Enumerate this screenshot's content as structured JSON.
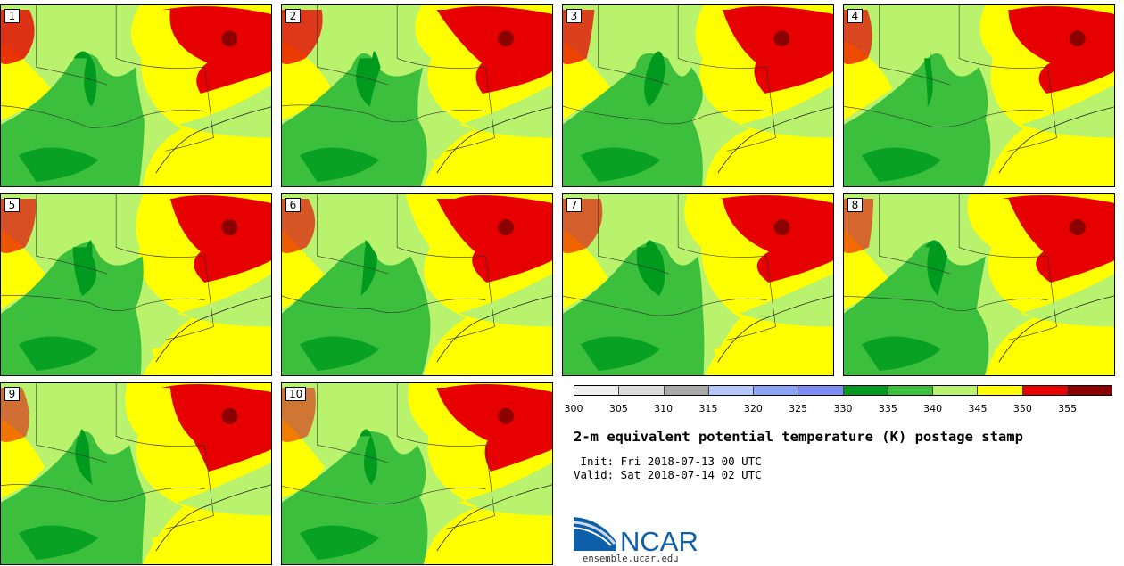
{
  "title": "2-m equivalent potential temperature (K) postage stamp",
  "init": " Init: Fri 2018-07-13 00 UTC",
  "valid": "Valid: Sat 2018-07-14 02 UTC",
  "members": [
    "1",
    "2",
    "3",
    "4",
    "5",
    "6",
    "7",
    "8",
    "9",
    "10"
  ],
  "colorbar": {
    "ticks": [
      "300",
      "305",
      "310",
      "315",
      "320",
      "325",
      "330",
      "335",
      "340",
      "345",
      "350",
      "355"
    ],
    "colors": [
      "#f0f0f0",
      "#dcdcdc",
      "#aaaaaa",
      "#b5c8fa",
      "#8aa5f7",
      "#7c8df5",
      "#009b1e",
      "#3cbf3c",
      "#b9f26c",
      "#ffff00",
      "#e60000",
      "#8b0000"
    ]
  },
  "logo": {
    "text": "NCAR",
    "url": "ensemble.ucar.edu",
    "color": "#0c5fa8"
  }
}
